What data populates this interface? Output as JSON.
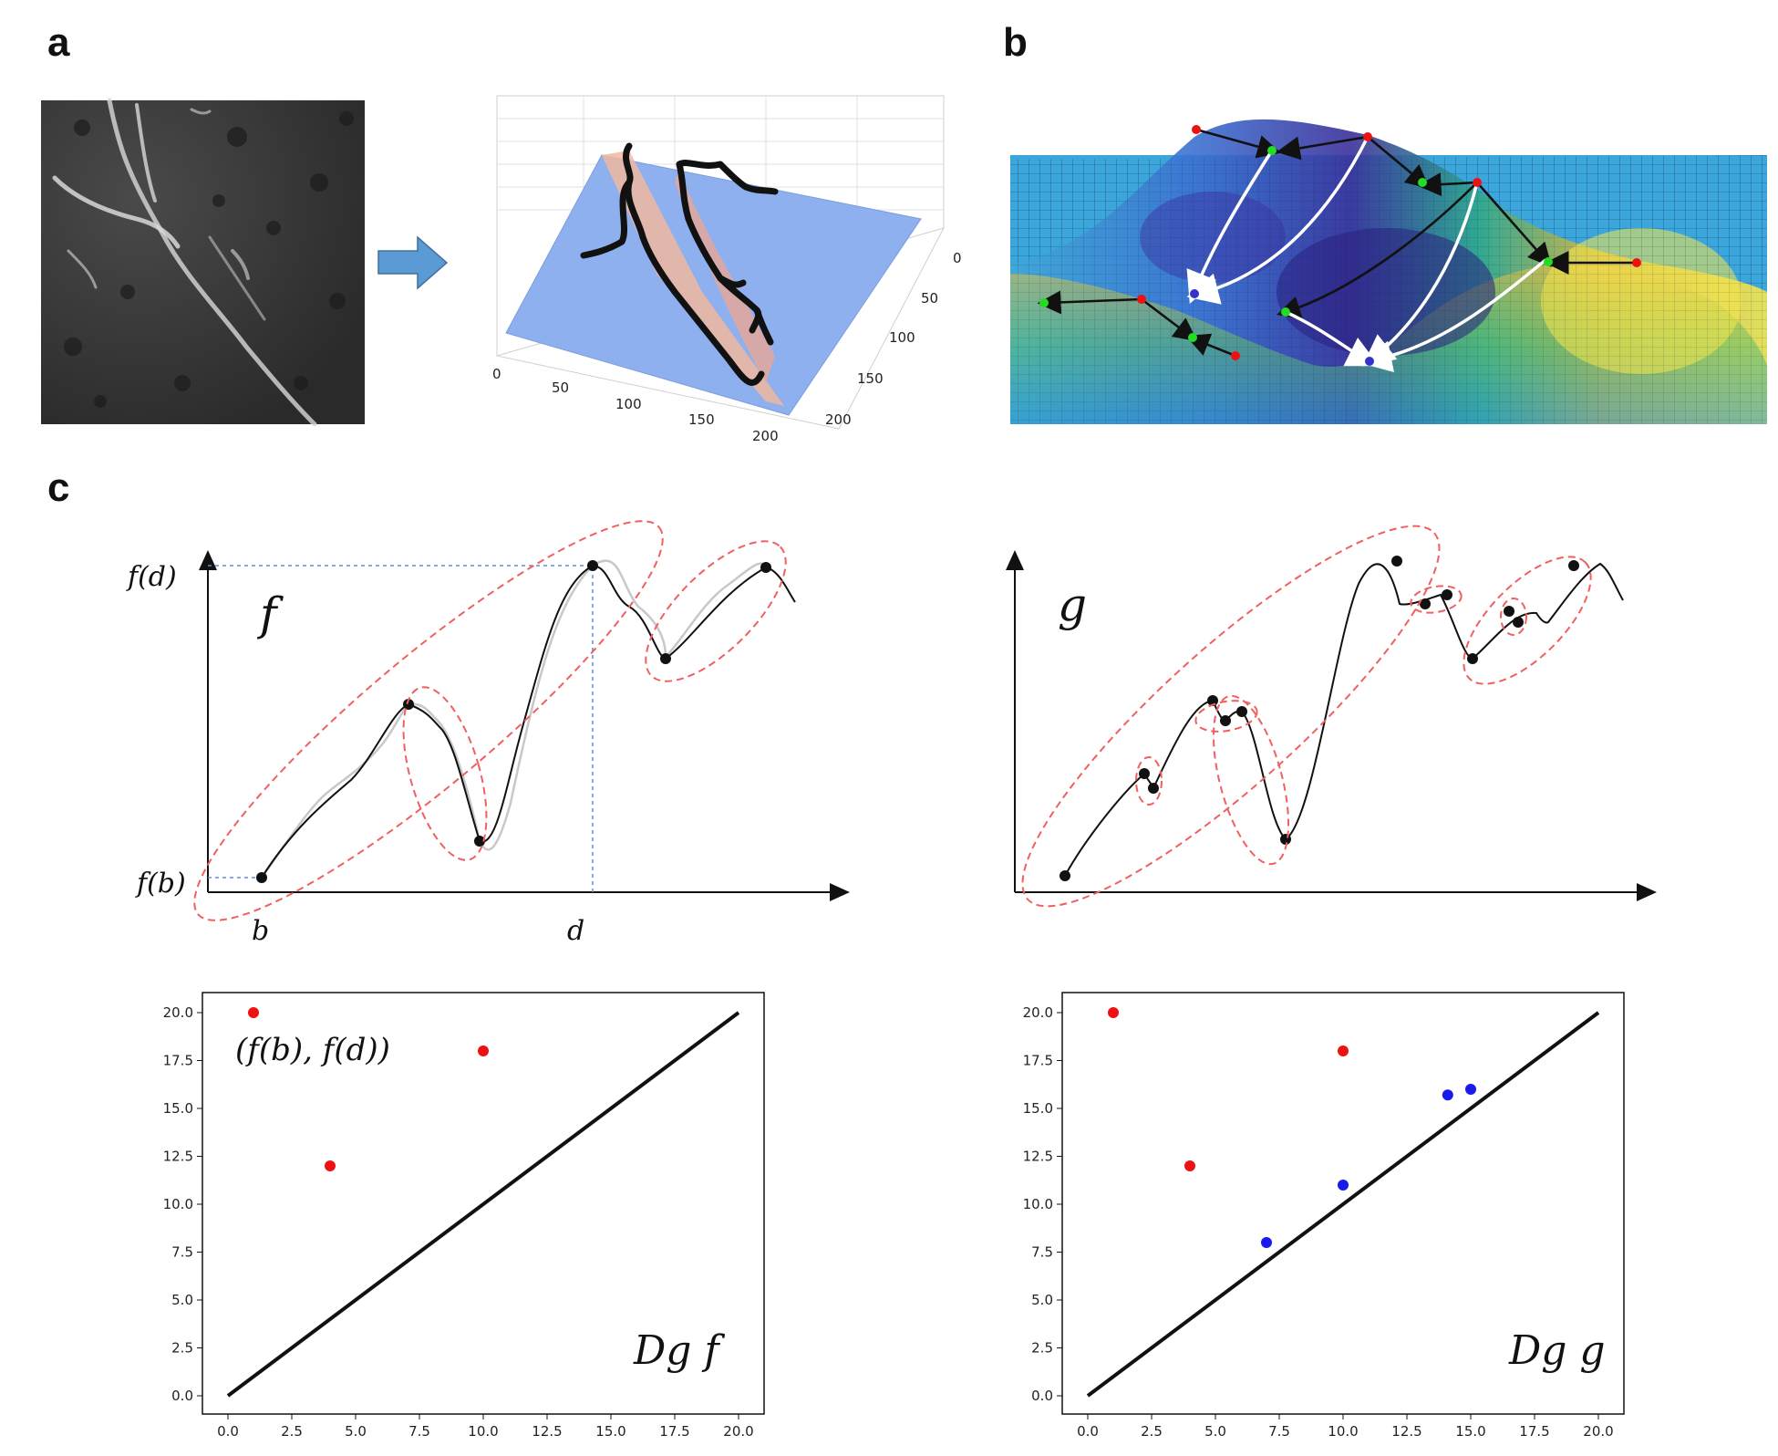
{
  "panels": {
    "a": "a",
    "b": "b",
    "c": "c"
  },
  "panel_a": {
    "surface_ticks_x": [
      "0",
      "50",
      "100",
      "150",
      "200"
    ],
    "surface_ticks_y": [
      "0",
      "50",
      "100",
      "150",
      "200"
    ]
  },
  "function_f": {
    "name": "f",
    "y_top_label": "f(d)",
    "y_bottom_label": "f(b)",
    "x_left_label": "b",
    "x_right_label": "d"
  },
  "function_g": {
    "name": "g"
  },
  "diagram_f": {
    "title": "Dg f",
    "annotation": "(f(b),  f(d))"
  },
  "diagram_g": {
    "title": "Dg g"
  },
  "colors": {
    "red_point": "#ee1111",
    "blue_point": "#1a1aee",
    "ellipse": "#f06060",
    "guide": "#5b8fd8"
  },
  "chart_data": [
    {
      "type": "scatter",
      "title": "Dg f",
      "xlim": [
        0,
        20
      ],
      "ylim": [
        0,
        20
      ],
      "x_ticks": [
        "0.0",
        "2.5",
        "5.0",
        "7.5",
        "10.0",
        "12.5",
        "15.0",
        "17.5",
        "20.0"
      ],
      "y_ticks": [
        "0.0",
        "2.5",
        "5.0",
        "7.5",
        "10.0",
        "12.5",
        "15.0",
        "17.5",
        "20.0"
      ],
      "diagonal": [
        [
          0,
          0
        ],
        [
          20,
          20
        ]
      ],
      "series": [
        {
          "name": "red",
          "color": "#ee1111",
          "points": [
            [
              1,
              20
            ],
            [
              10,
              18
            ],
            [
              4,
              12
            ]
          ]
        }
      ]
    },
    {
      "type": "scatter",
      "title": "Dg g",
      "xlim": [
        0,
        20
      ],
      "ylim": [
        0,
        20
      ],
      "x_ticks": [
        "0.0",
        "2.5",
        "5.0",
        "7.5",
        "10.0",
        "12.5",
        "15.0",
        "17.5",
        "20.0"
      ],
      "y_ticks": [
        "0.0",
        "2.5",
        "5.0",
        "7.5",
        "10.0",
        "12.5",
        "15.0",
        "17.5",
        "20.0"
      ],
      "diagonal": [
        [
          0,
          0
        ],
        [
          20,
          20
        ]
      ],
      "series": [
        {
          "name": "red",
          "color": "#ee1111",
          "points": [
            [
              1,
              20
            ],
            [
              10,
              18
            ],
            [
              4,
              12
            ]
          ]
        },
        {
          "name": "blue",
          "color": "#1a1aee",
          "points": [
            [
              14.1,
              15.7
            ],
            [
              15,
              16
            ],
            [
              10,
              11
            ],
            [
              7,
              8
            ]
          ]
        }
      ]
    }
  ]
}
